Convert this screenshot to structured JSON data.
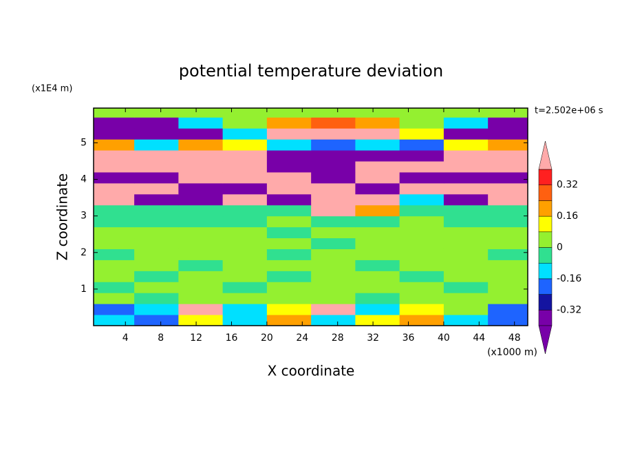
{
  "chart_data": {
    "type": "contour",
    "title": "potential temperature deviation",
    "y_unit": "(x1E4 m)",
    "x_unit": "(x1000 m)",
    "time_label": "t=2.502e+06 s",
    "xlabel": "X coordinate",
    "ylabel": "Z coordinate",
    "xlim": [
      0.4,
      49.5
    ],
    "ylim": [
      0,
      5.95
    ],
    "xticks": [
      4,
      8,
      12,
      16,
      20,
      24,
      28,
      32,
      36,
      40,
      44,
      48
    ],
    "yticks": [
      1,
      2,
      3,
      4,
      5
    ],
    "x": [
      2.5,
      7.5,
      12.5,
      17.5,
      22.5,
      27.5,
      32.5,
      37.5,
      42.5,
      47.5
    ],
    "z": [
      0.15,
      0.45,
      0.75,
      1.05,
      1.35,
      1.65,
      1.95,
      2.25,
      2.55,
      2.85,
      3.15,
      3.45,
      3.75,
      4.05,
      4.35,
      4.65,
      4.95,
      5.25,
      5.55,
      5.85
    ],
    "field": [
      [
        -0.1,
        -0.2,
        0.1,
        -0.1,
        0.2,
        -0.1,
        0.1,
        0.2,
        -0.1,
        -0.2
      ],
      [
        -0.2,
        -0.1,
        0.45,
        -0.1,
        0.1,
        0.45,
        -0.1,
        0.1,
        0.05,
        -0.2
      ],
      [
        0.05,
        -0.02,
        0.05,
        0.03,
        0.05,
        0.03,
        -0.02,
        0.05,
        0.03,
        0.05
      ],
      [
        -0.02,
        0.03,
        0.05,
        -0.03,
        0.04,
        0.02,
        0.05,
        0.03,
        -0.02,
        0.04
      ],
      [
        0.04,
        -0.03,
        0.03,
        0.05,
        -0.02,
        0.04,
        0.03,
        -0.03,
        0.05,
        0.02
      ],
      [
        0.05,
        0.04,
        -0.02,
        0.03,
        0.05,
        0.04,
        -0.02,
        0.05,
        0.03,
        0.04
      ],
      [
        -0.03,
        0.04,
        0.05,
        0.03,
        -0.02,
        0.04,
        0.05,
        0.03,
        0.04,
        -0.02
      ],
      [
        0.04,
        0.05,
        0.03,
        0.04,
        0.05,
        -0.02,
        0.04,
        0.05,
        0.03,
        0.04
      ],
      [
        0.05,
        0.03,
        0.04,
        0.05,
        -0.03,
        0.04,
        0.05,
        0.04,
        0.05,
        0.03
      ],
      [
        -0.03,
        -0.03,
        -0.04,
        -0.03,
        0.03,
        -0.03,
        -0.03,
        0.04,
        -0.03,
        -0.03
      ],
      [
        -0.02,
        -0.03,
        -0.02,
        -0.03,
        -0.02,
        0.45,
        0.2,
        -0.03,
        -0.02,
        -0.03
      ],
      [
        0.45,
        -0.45,
        -0.45,
        0.45,
        -0.45,
        0.45,
        0.45,
        -0.1,
        -0.45,
        0.45
      ],
      [
        0.45,
        0.45,
        -0.45,
        -0.45,
        0.45,
        0.45,
        -0.45,
        0.45,
        0.45,
        0.45
      ],
      [
        -0.45,
        -0.45,
        0.45,
        0.45,
        0.45,
        -0.45,
        0.45,
        -0.45,
        -0.45,
        -0.45
      ],
      [
        0.45,
        0.45,
        0.45,
        0.45,
        -0.45,
        -0.45,
        0.45,
        0.45,
        0.45,
        0.45
      ],
      [
        0.45,
        0.45,
        0.45,
        0.45,
        -0.45,
        -0.45,
        -0.45,
        -0.45,
        0.45,
        0.45
      ],
      [
        0.2,
        -0.1,
        0.2,
        0.1,
        -0.1,
        -0.2,
        -0.1,
        -0.2,
        0.1,
        0.2
      ],
      [
        -0.45,
        -0.45,
        -0.45,
        -0.1,
        0.45,
        0.45,
        0.45,
        0.1,
        -0.45,
        -0.45
      ],
      [
        -0.45,
        -0.45,
        -0.1,
        0.02,
        0.2,
        0.3,
        0.2,
        0.02,
        -0.1,
        -0.45
      ],
      [
        0.03,
        0.02,
        0.03,
        0.04,
        0.03,
        0.02,
        0.03,
        0.04,
        0.03,
        0.02
      ]
    ],
    "levels": [
      -0.4,
      -0.32,
      -0.24,
      -0.16,
      -0.08,
      0,
      0.08,
      0.16,
      0.24,
      0.32,
      0.4
    ],
    "colors": [
      "#7800a8",
      "#7800a8",
      "#1414a0",
      "#1e64ff",
      "#00e0ff",
      "#30e090",
      "#94f030",
      "#ffff00",
      "#ffa000",
      "#ff6010",
      "#ff2020",
      "#ffaaaa"
    ],
    "colorbar_ticks": [
      0.32,
      0.16,
      0,
      -0.16,
      -0.32
    ]
  }
}
